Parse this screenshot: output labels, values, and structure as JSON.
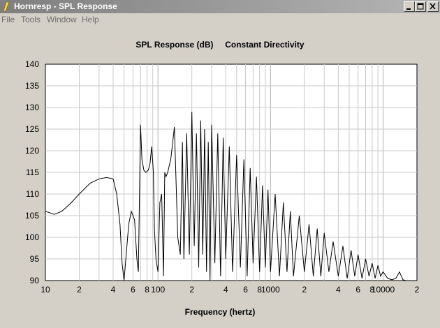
{
  "window": {
    "title": "Hornresp - SPL Response"
  },
  "menu": {
    "items": [
      "File",
      "Tools",
      "Window",
      "Help"
    ]
  },
  "colors": {
    "titlebar": "#8a8a8a",
    "background": "#d4d0c8",
    "plot_bg": "#ffffff",
    "grid": "#c8c8c8",
    "curve": "#000000"
  },
  "chart_data": {
    "type": "line",
    "title": "SPL Response (dB)",
    "subtitle": "Constant Directivity",
    "xlabel": "Frequency (hertz)",
    "ylabel": "",
    "x_scale": "log",
    "xlim": [
      10,
      20000
    ],
    "ylim": [
      90,
      140
    ],
    "grid": true,
    "x_tick_labels": [
      {
        "v": 10,
        "t": "10"
      },
      {
        "v": 20,
        "t": "2"
      },
      {
        "v": 40,
        "t": "4"
      },
      {
        "v": 60,
        "t": "6"
      },
      {
        "v": 80,
        "t": "8"
      },
      {
        "v": 100,
        "t": "100"
      },
      {
        "v": 200,
        "t": "2"
      },
      {
        "v": 400,
        "t": "4"
      },
      {
        "v": 600,
        "t": "6"
      },
      {
        "v": 800,
        "t": "8"
      },
      {
        "v": 1000,
        "t": "1000"
      },
      {
        "v": 2000,
        "t": "2"
      },
      {
        "v": 4000,
        "t": "4"
      },
      {
        "v": 6000,
        "t": "6"
      },
      {
        "v": 8000,
        "t": "8"
      },
      {
        "v": 10000,
        "t": "10000"
      },
      {
        "v": 20000,
        "t": "2"
      }
    ],
    "y_ticks": [
      90,
      95,
      100,
      105,
      110,
      115,
      120,
      125,
      130,
      135,
      140
    ],
    "series": [
      {
        "name": "",
        "x": [
          10,
          12,
          14,
          17,
          20,
          25,
          30,
          35,
          40,
          43,
          46,
          48,
          50,
          55,
          58,
          62,
          65,
          67,
          70,
          72,
          75,
          78,
          82,
          85,
          88,
          91,
          93,
          96,
          100,
          104,
          108,
          112,
          115,
          118,
          122,
          130,
          140,
          150,
          158,
          165,
          170,
          180,
          190,
          200,
          210,
          220,
          230,
          240,
          250,
          260,
          270,
          280,
          290,
          300,
          320,
          340,
          360,
          380,
          400,
          430,
          460,
          500,
          540,
          580,
          620,
          660,
          700,
          750,
          800,
          850,
          900,
          950,
          1000,
          1100,
          1200,
          1300,
          1400,
          1500,
          1600,
          1800,
          2000,
          2200,
          2400,
          2600,
          2800,
          3000,
          3300,
          3600,
          4000,
          4400,
          4800,
          5200,
          5600,
          6000,
          6500,
          7000,
          7500,
          8000,
          8500,
          9000,
          9500,
          10000,
          11000,
          12000,
          13000,
          14000,
          15000,
          16000
        ],
        "values": [
          106,
          105.3,
          106,
          108,
          110,
          112.5,
          113.5,
          113.8,
          113.5,
          110,
          103,
          94,
          90,
          103,
          106,
          104,
          95,
          92,
          126,
          118,
          115.5,
          115,
          115.5,
          117,
          121,
          115,
          102,
          95,
          92,
          108,
          110,
          91,
          115,
          114,
          115,
          118,
          125.5,
          100,
          96,
          122,
          95,
          124,
          96,
          129,
          98,
          124,
          93,
          127,
          96,
          125,
          92,
          122,
          90,
          126,
          94,
          124,
          91,
          123,
          95,
          121,
          92,
          119,
          93,
          118,
          91,
          116,
          94,
          114,
          92,
          112,
          93,
          111,
          92,
          110,
          91,
          108,
          92,
          106,
          91,
          105,
          92,
          103,
          91,
          102,
          91,
          101,
          92,
          99,
          91,
          98,
          90.5,
          97,
          91,
          96,
          90.5,
          95,
          91,
          94,
          90.5,
          93.5,
          91,
          92,
          90.5,
          90.2,
          90.5,
          92,
          90.2,
          90
        ]
      }
    ]
  }
}
